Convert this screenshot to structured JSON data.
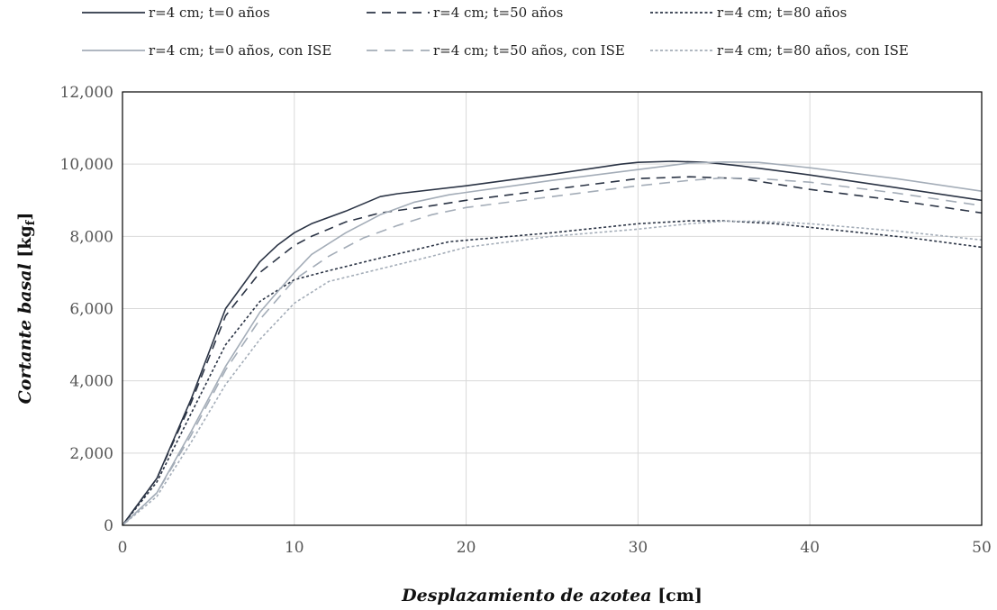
{
  "chart_data": {
    "type": "line",
    "xlabel_main": "Desplazamiento de azotea",
    "xlabel_unit": "[cm]",
    "ylabel_main": "Cortante basal",
    "ylabel_unit": "[kg",
    "ylabel_unit_sub": "f",
    "ylabel_unit_close": "]",
    "xlim": [
      0,
      50
    ],
    "ylim": [
      0,
      12000
    ],
    "x_ticks": [
      "0",
      "10",
      "20",
      "30",
      "40",
      "50"
    ],
    "y_ticks": [
      "0",
      "2,000",
      "4,000",
      "6,000",
      "8,000",
      "10,000",
      "12,000"
    ],
    "grid": true,
    "legend_position": "top",
    "series": [
      {
        "name": "r=4 cm; t=0 años",
        "color": "#2b3445",
        "dash": "solid",
        "points": [
          [
            0,
            0
          ],
          [
            2,
            1300
          ],
          [
            4,
            3500
          ],
          [
            6,
            6000
          ],
          [
            8,
            7300
          ],
          [
            9,
            7750
          ],
          [
            10,
            8100
          ],
          [
            11,
            8350
          ],
          [
            13,
            8700
          ],
          [
            15,
            9100
          ],
          [
            16,
            9180
          ],
          [
            20,
            9400
          ],
          [
            25,
            9720
          ],
          [
            29,
            10000
          ],
          [
            30,
            10050
          ],
          [
            32,
            10080
          ],
          [
            34,
            10050
          ],
          [
            36,
            9950
          ],
          [
            40,
            9700
          ],
          [
            45,
            9350
          ],
          [
            50,
            9000
          ]
        ]
      },
      {
        "name": "r=4 cm; t=50 años",
        "color": "#2b3445",
        "dash": "10,7",
        "points": [
          [
            0,
            0
          ],
          [
            2,
            1300
          ],
          [
            4,
            3400
          ],
          [
            6,
            5800
          ],
          [
            8,
            7000
          ],
          [
            10,
            7750
          ],
          [
            11,
            8000
          ],
          [
            13,
            8400
          ],
          [
            15,
            8650
          ],
          [
            18,
            8850
          ],
          [
            20,
            9000
          ],
          [
            25,
            9300
          ],
          [
            30,
            9600
          ],
          [
            33,
            9650
          ],
          [
            36,
            9600
          ],
          [
            40,
            9300
          ],
          [
            45,
            9000
          ],
          [
            50,
            8650
          ]
        ]
      },
      {
        "name": "r=4 cm; t=80 años",
        "color": "#2b3445",
        "dash": "3,2.5",
        "points": [
          [
            0,
            0
          ],
          [
            2,
            1200
          ],
          [
            4,
            3100
          ],
          [
            6,
            5000
          ],
          [
            8,
            6200
          ],
          [
            10,
            6800
          ],
          [
            12,
            7050
          ],
          [
            15,
            7400
          ],
          [
            19,
            7850
          ],
          [
            25,
            8100
          ],
          [
            30,
            8350
          ],
          [
            33,
            8430
          ],
          [
            35,
            8430
          ],
          [
            38,
            8350
          ],
          [
            42,
            8150
          ],
          [
            46,
            7950
          ],
          [
            50,
            7700
          ]
        ]
      },
      {
        "name": "r=4 cm; t=0 años, con ISE",
        "color": "#a4adb8",
        "dash": "solid",
        "points": [
          [
            0,
            0
          ],
          [
            2,
            900
          ],
          [
            4,
            2600
          ],
          [
            6,
            4400
          ],
          [
            8,
            5900
          ],
          [
            10,
            7000
          ],
          [
            11,
            7500
          ],
          [
            13,
            8100
          ],
          [
            15,
            8600
          ],
          [
            17,
            8950
          ],
          [
            19,
            9150
          ],
          [
            22,
            9350
          ],
          [
            25,
            9550
          ],
          [
            30,
            9850
          ],
          [
            33,
            10030
          ],
          [
            35,
            10060
          ],
          [
            37,
            10050
          ],
          [
            40,
            9900
          ],
          [
            45,
            9600
          ],
          [
            50,
            9250
          ]
        ]
      },
      {
        "name": "r=4 cm; t=50 años, con ISE",
        "color": "#a4adb8",
        "dash": "12,8",
        "points": [
          [
            0,
            0
          ],
          [
            2,
            900
          ],
          [
            4,
            2500
          ],
          [
            6,
            4300
          ],
          [
            8,
            5700
          ],
          [
            10,
            6800
          ],
          [
            12,
            7450
          ],
          [
            14,
            7950
          ],
          [
            16,
            8300
          ],
          [
            18,
            8600
          ],
          [
            20,
            8800
          ],
          [
            25,
            9100
          ],
          [
            30,
            9400
          ],
          [
            33,
            9550
          ],
          [
            35,
            9620
          ],
          [
            37,
            9600
          ],
          [
            40,
            9500
          ],
          [
            45,
            9200
          ],
          [
            50,
            8850
          ]
        ]
      },
      {
        "name": "r=4 cm; t=80 años, con ISE",
        "color": "#a4adb8",
        "dash": "3,2.5",
        "points": [
          [
            0,
            0
          ],
          [
            2,
            800
          ],
          [
            4,
            2300
          ],
          [
            6,
            3900
          ],
          [
            8,
            5150
          ],
          [
            10,
            6150
          ],
          [
            12,
            6750
          ],
          [
            15,
            7100
          ],
          [
            18,
            7450
          ],
          [
            20,
            7700
          ],
          [
            25,
            8000
          ],
          [
            30,
            8200
          ],
          [
            33,
            8350
          ],
          [
            35,
            8420
          ],
          [
            37,
            8420
          ],
          [
            40,
            8350
          ],
          [
            45,
            8150
          ],
          [
            50,
            7900
          ]
        ]
      }
    ]
  }
}
